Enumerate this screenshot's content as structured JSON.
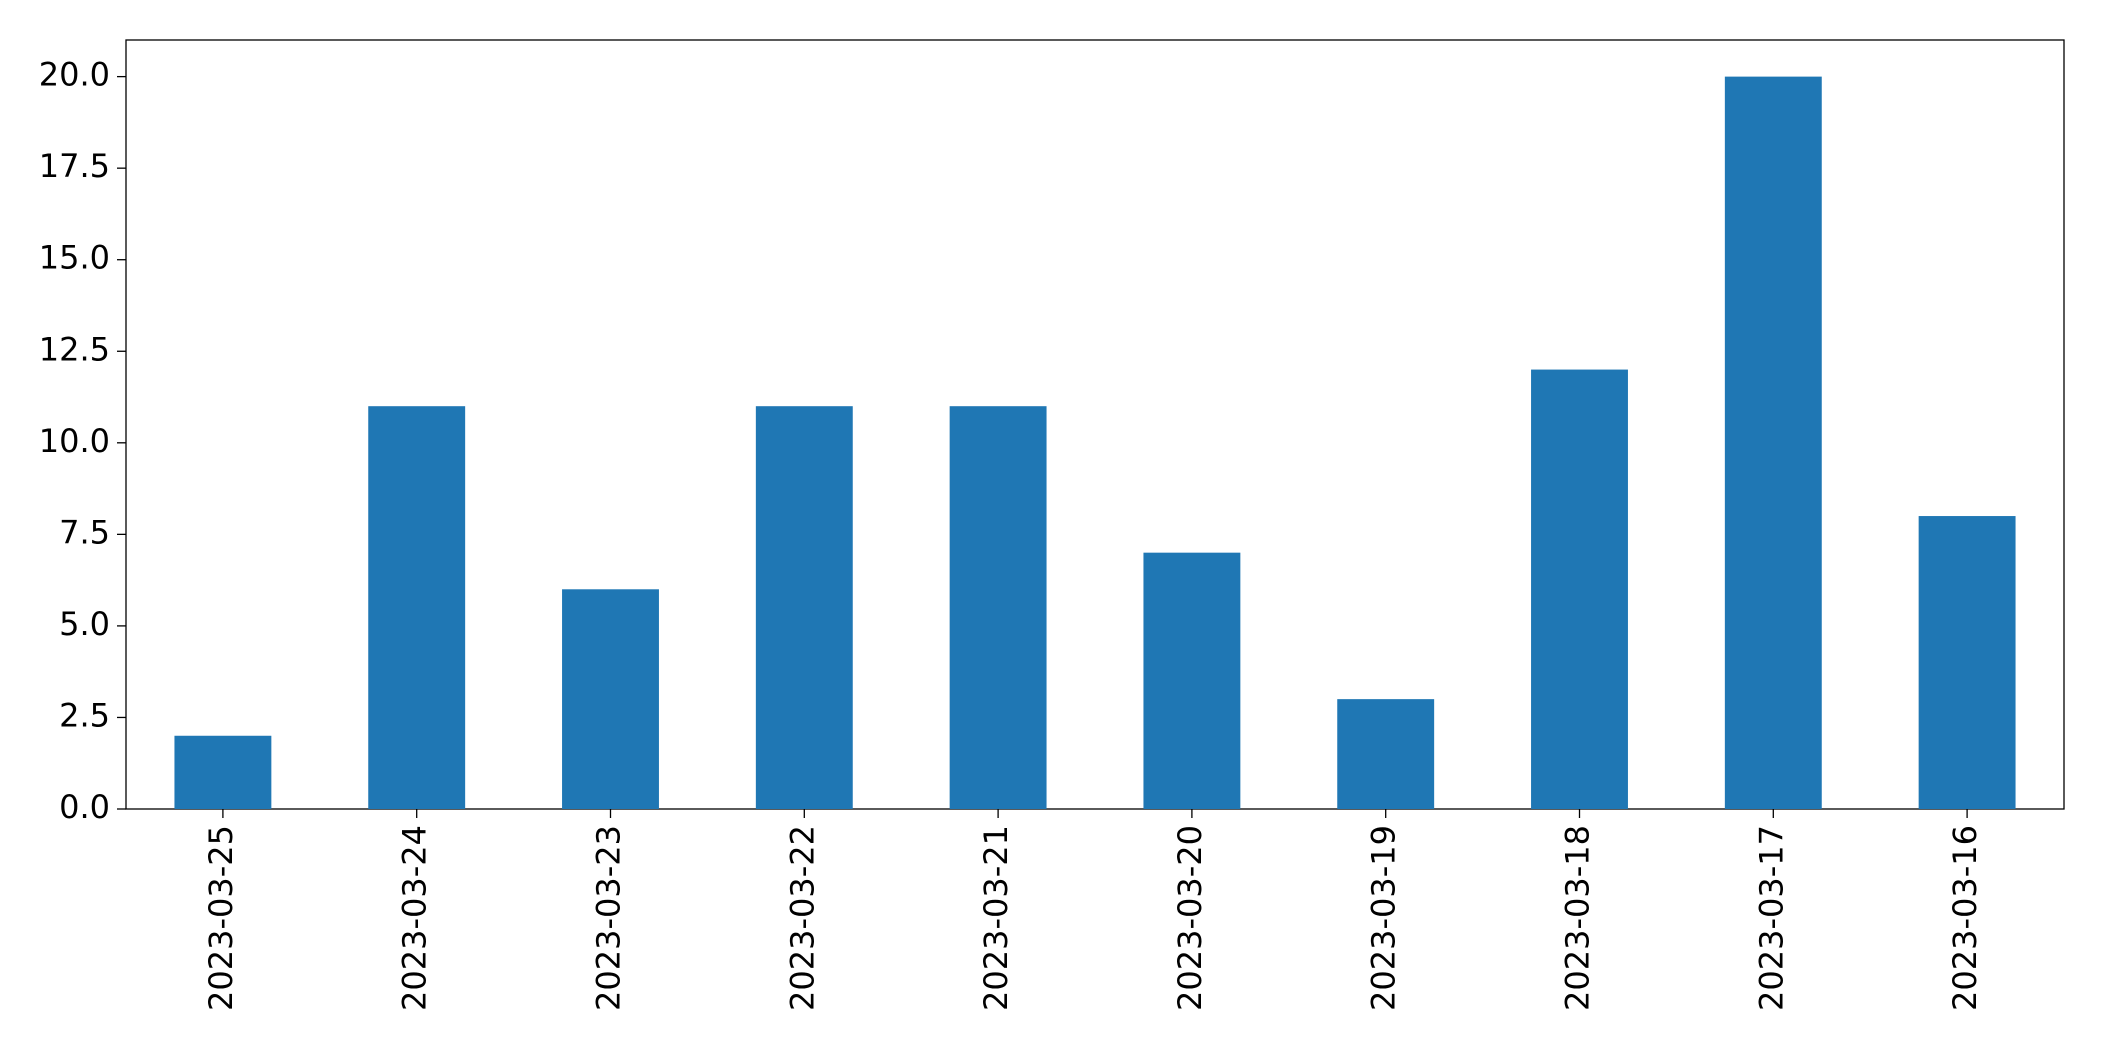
{
  "chart_data": {
    "type": "bar",
    "categories": [
      "2023-03-25",
      "2023-03-24",
      "2023-03-23",
      "2023-03-22",
      "2023-03-21",
      "2023-03-20",
      "2023-03-19",
      "2023-03-18",
      "2023-03-17",
      "2023-03-16"
    ],
    "values": [
      2,
      11,
      6,
      11,
      11,
      7,
      3,
      12,
      20,
      8
    ],
    "color": "#1f77b4",
    "ylim": [
      0,
      21
    ],
    "yticks": [
      {
        "value": 0,
        "label": "0.0"
      },
      2.5,
      {
        "value": 5,
        "label": "5.0"
      },
      7.5,
      {
        "value": 10,
        "label": "10.0"
      },
      12.5,
      {
        "value": 15,
        "label": "15.0"
      },
      17.5,
      {
        "value": 20,
        "label": "20.0"
      }
    ],
    "grid": false
  }
}
